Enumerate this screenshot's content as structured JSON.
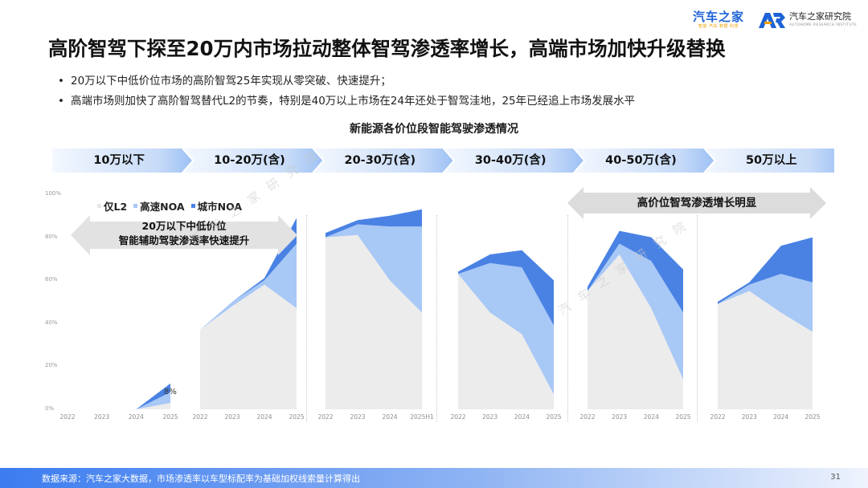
{
  "header": {
    "logo_left_text": "汽车之家",
    "logo_left_sub": "智能·汽车·数据·科技",
    "logo_right_text": "汽车之家研究院",
    "logo_right_sub": "AUTOHOME RESEARCH INSTITUTE"
  },
  "title": "高阶智驾下探至20万内市场拉动整体智驾渗透率增长，高端市场加快升级替换",
  "bullets": [
    "20万以下中低价位市场的高阶智驾25年实现从零突破、快速提升；",
    "高端市场则加快了高阶智驾替代L2的节奏，特别是40万以上市场在24年还处于智驾洼地，25年已经追上市场发展水平"
  ],
  "watermark": "汽车之家研究院",
  "chart_data": {
    "type": "area",
    "title": "新能源各价位段智能驾驶渗透情况",
    "ylim": [
      0,
      100
    ],
    "y_ticks": [
      "0%",
      "20%",
      "40%",
      "60%",
      "80%",
      "100%"
    ],
    "stacking": "stacked",
    "series_names": [
      "仅L2",
      "高速NOA",
      "城市NOA"
    ],
    "colors": {
      "仅L2": "#ececec",
      "高速NOA": "#a8c8f6",
      "城市NOA": "#4a82e4"
    },
    "panels": [
      {
        "segment": "10万以下",
        "x": [
          "2022",
          "2023",
          "2024",
          "2025"
        ],
        "series": [
          {
            "name": "仅L2",
            "values": [
              0,
              0,
              0,
              3
            ]
          },
          {
            "name": "高速NOA",
            "values": [
              0,
              0,
              0,
              5
            ]
          },
          {
            "name": "城市NOA",
            "values": [
              0,
              0,
              0,
              4
            ]
          }
        ],
        "annotation": "8%"
      },
      {
        "segment": "10-20万(含)",
        "x": [
          "2022",
          "2023",
          "2024",
          "2025"
        ],
        "series": [
          {
            "name": "仅L2",
            "values": [
              37,
              48,
              58,
              47
            ]
          },
          {
            "name": "高速NOA",
            "values": [
              0,
              2,
              2,
              30
            ]
          },
          {
            "name": "城市NOA",
            "values": [
              0,
              0,
              1,
              12
            ]
          }
        ]
      },
      {
        "segment": "20-30万(含)",
        "x": [
          "2022",
          "2023",
          "2024",
          "2025H1"
        ],
        "series": [
          {
            "name": "仅L2",
            "values": [
              80,
              81,
              60,
              45
            ]
          },
          {
            "name": "高速NOA",
            "values": [
              0,
              5,
              25,
              40
            ]
          },
          {
            "name": "城市NOA",
            "values": [
              2,
              2,
              5,
              8
            ]
          }
        ]
      },
      {
        "segment": "30-40万(含)",
        "x": [
          "2022",
          "2023",
          "2024",
          "2025"
        ],
        "series": [
          {
            "name": "仅L2",
            "values": [
              63,
              45,
              35,
              7
            ]
          },
          {
            "name": "高速NOA",
            "values": [
              0,
              23,
              31,
              32
            ]
          },
          {
            "name": "城市NOA",
            "values": [
              1,
              4,
              8,
              21
            ]
          }
        ]
      },
      {
        "segment": "40-50万(含)",
        "x": [
          "2022",
          "2023",
          "2024",
          "2025"
        ],
        "series": [
          {
            "name": "仅L2",
            "values": [
              55,
              72,
              47,
              14
            ]
          },
          {
            "name": "高速NOA",
            "values": [
              0,
              5,
              22,
              31
            ]
          },
          {
            "name": "城市NOA",
            "values": [
              2,
              6,
              11,
              20
            ]
          }
        ]
      },
      {
        "segment": "50万以上",
        "x": [
          "2022",
          "2023",
          "2024",
          "2025"
        ],
        "series": [
          {
            "name": "仅L2",
            "values": [
              49,
              55,
              45,
              36
            ]
          },
          {
            "name": "高速NOA",
            "values": [
              0,
              3,
              18,
              23
            ]
          },
          {
            "name": "城市NOA",
            "values": [
              1,
              1,
              13,
              21
            ]
          }
        ]
      }
    ],
    "callouts": [
      {
        "text": "20万以下中低价位\n智能辅助驾驶渗透率快速提升"
      },
      {
        "text": "高价位智驾渗透增长明显"
      }
    ]
  },
  "footer": {
    "source": "数据来源：汽车之家大数据，市场渗透率以车型标配率为基础加权线索量计算得出",
    "page": "31"
  }
}
